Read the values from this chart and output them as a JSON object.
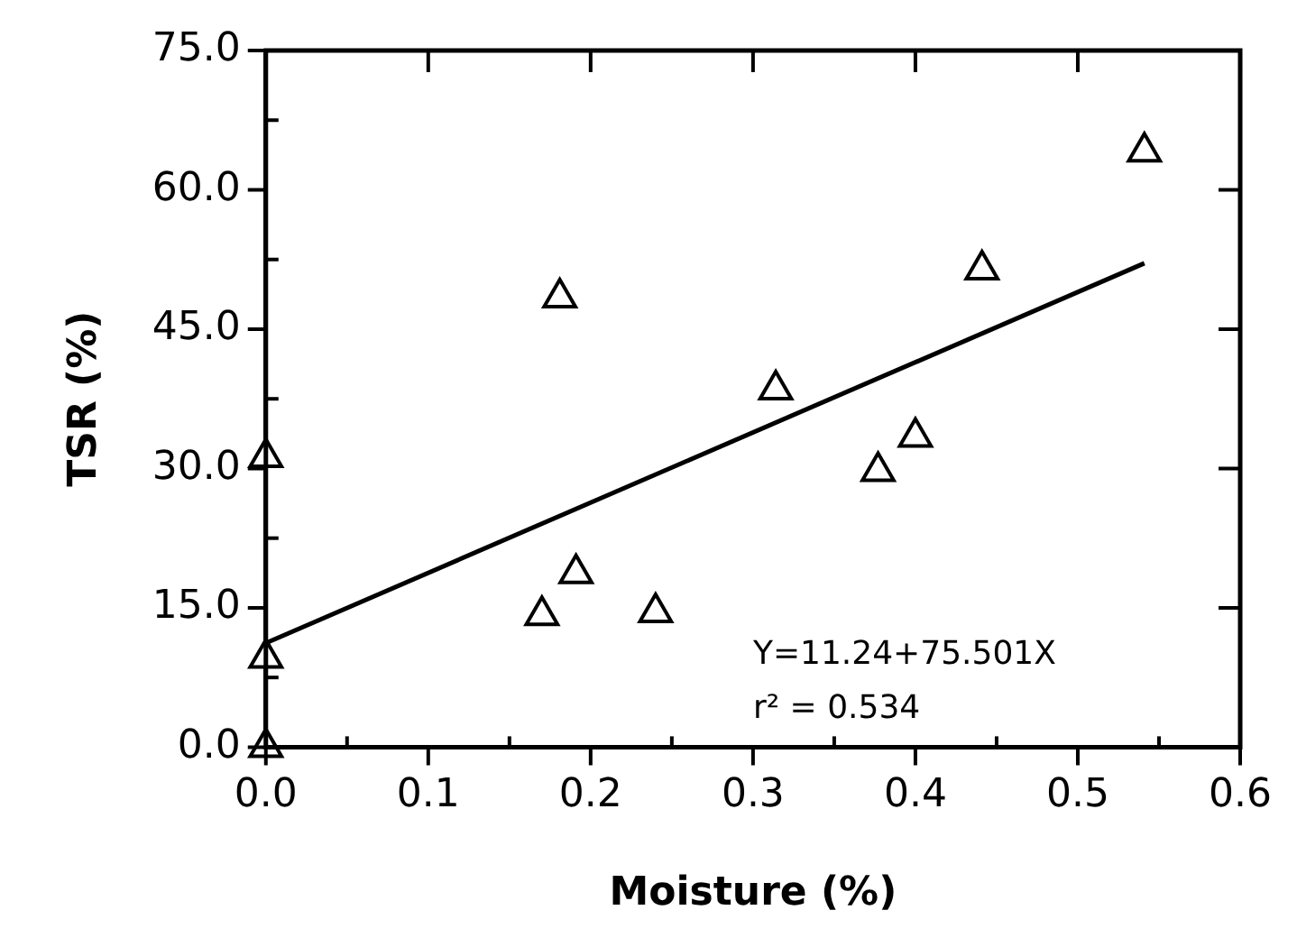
{
  "chart_data": {
    "type": "scatter",
    "xlabel": "Moisture (%)",
    "ylabel": "TSR (%)",
    "xlim": [
      0,
      0.6
    ],
    "ylim": [
      0,
      75
    ],
    "xticks": [
      {
        "value": 0,
        "label": "0.0"
      },
      {
        "value": 0.05,
        "label": null
      },
      {
        "value": 0.1,
        "label": "0.1"
      },
      {
        "value": 0.15,
        "label": null
      },
      {
        "value": 0.2,
        "label": "0.2"
      },
      {
        "value": 0.25,
        "label": null
      },
      {
        "value": 0.3,
        "label": "0.3"
      },
      {
        "value": 0.35,
        "label": null
      },
      {
        "value": 0.4,
        "label": "0.4"
      },
      {
        "value": 0.45,
        "label": null
      },
      {
        "value": 0.5,
        "label": "0.5"
      },
      {
        "value": 0.55,
        "label": null
      },
      {
        "value": 0.6,
        "label": "0.6"
      }
    ],
    "yticks": [
      {
        "value": 0,
        "label": "0.0"
      },
      {
        "value": 7.5,
        "label": null
      },
      {
        "value": 15,
        "label": "15.0"
      },
      {
        "value": 22.5,
        "label": null
      },
      {
        "value": 30,
        "label": "30.0"
      },
      {
        "value": 37.5,
        "label": null
      },
      {
        "value": 45,
        "label": "45.0"
      },
      {
        "value": 52.5,
        "label": null
      },
      {
        "value": 60,
        "label": "60.0"
      },
      {
        "value": 67.5,
        "label": null
      },
      {
        "value": 75,
        "label": "75.0"
      }
    ],
    "grid": false,
    "legend": false,
    "series": [
      {
        "color": "#000000",
        "marker": "triangle",
        "x": [
          0,
          0,
          0,
          0.17,
          0.181,
          0.191,
          0.24,
          0.314,
          0.377,
          0.4,
          0.441,
          0.541
        ],
        "values": [
          0,
          9.6,
          31.2,
          14.2,
          48.4,
          18.7,
          14.5,
          38.5,
          29.7,
          33.4,
          51.4,
          64.1
        ]
      },
      {
        "type": "line",
        "color": "#000000",
        "marker": "none",
        "line_style": "solid",
        "x": [
          0,
          0.541
        ],
        "values": [
          11.2,
          52.1
        ]
      }
    ],
    "annotations": [
      "Y=11.24+75.501X",
      "r² = 0.534"
    ]
  }
}
